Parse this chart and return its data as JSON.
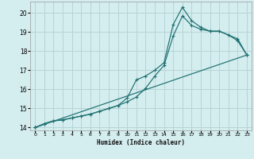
{
  "xlabel": "Humidex (Indice chaleur)",
  "background_color": "#d4edef",
  "grid_color": "#b8d4d6",
  "line_color": "#1e7070",
  "xlim": [
    -0.5,
    23.5
  ],
  "ylim": [
    13.85,
    20.6
  ],
  "xticks": [
    0,
    1,
    2,
    3,
    4,
    5,
    6,
    7,
    8,
    9,
    10,
    11,
    12,
    13,
    14,
    15,
    16,
    17,
    18,
    19,
    20,
    21,
    22,
    23
  ],
  "yticks": [
    14,
    15,
    16,
    17,
    18,
    19,
    20
  ],
  "line1_x": [
    0,
    1,
    2,
    3,
    4,
    5,
    6,
    7,
    8,
    9,
    10,
    11,
    12,
    13,
    14,
    15,
    16,
    17,
    18,
    19,
    20,
    21,
    22,
    23
  ],
  "line1_y": [
    14.0,
    14.2,
    14.35,
    14.4,
    14.5,
    14.6,
    14.7,
    14.85,
    15.0,
    15.15,
    15.35,
    15.6,
    16.05,
    16.7,
    17.25,
    18.8,
    19.85,
    19.35,
    19.15,
    19.05,
    19.05,
    18.85,
    18.55,
    17.8
  ],
  "line2_x": [
    0,
    1,
    2,
    3,
    4,
    5,
    6,
    7,
    8,
    9,
    10,
    11,
    12,
    13,
    14,
    15,
    16,
    17,
    18,
    19,
    20,
    21,
    22,
    23
  ],
  "line2_y": [
    14.0,
    14.2,
    14.35,
    14.4,
    14.5,
    14.6,
    14.7,
    14.85,
    15.0,
    15.15,
    15.55,
    16.5,
    16.7,
    17.0,
    17.4,
    19.4,
    20.3,
    19.6,
    19.25,
    19.05,
    19.05,
    18.85,
    18.65,
    17.8
  ],
  "line3_x": [
    0,
    23
  ],
  "line3_y": [
    14.0,
    17.8
  ]
}
